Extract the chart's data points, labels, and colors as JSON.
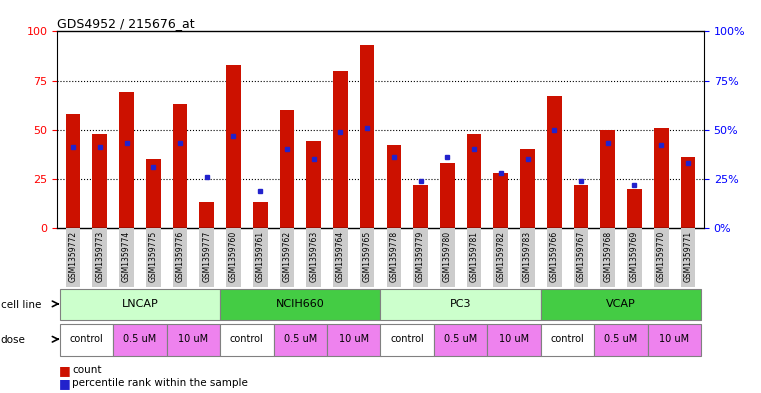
{
  "title": "GDS4952 / 215676_at",
  "samples": [
    "GSM1359772",
    "GSM1359773",
    "GSM1359774",
    "GSM1359775",
    "GSM1359776",
    "GSM1359777",
    "GSM1359760",
    "GSM1359761",
    "GSM1359762",
    "GSM1359763",
    "GSM1359764",
    "GSM1359765",
    "GSM1359778",
    "GSM1359779",
    "GSM1359780",
    "GSM1359781",
    "GSM1359782",
    "GSM1359783",
    "GSM1359766",
    "GSM1359767",
    "GSM1359768",
    "GSM1359769",
    "GSM1359770",
    "GSM1359771"
  ],
  "red_values": [
    58,
    48,
    69,
    35,
    63,
    13,
    83,
    13,
    60,
    44,
    80,
    93,
    42,
    22,
    33,
    48,
    28,
    40,
    67,
    22,
    50,
    20,
    51,
    36
  ],
  "blue_values": [
    41,
    41,
    43,
    31,
    43,
    26,
    47,
    19,
    40,
    35,
    49,
    51,
    36,
    24,
    36,
    40,
    28,
    35,
    50,
    24,
    43,
    22,
    42,
    33
  ],
  "cell_lines": [
    "LNCAP",
    "NCIH660",
    "PC3",
    "VCAP"
  ],
  "cell_line_spans": [
    [
      0,
      6
    ],
    [
      6,
      12
    ],
    [
      12,
      18
    ],
    [
      18,
      24
    ]
  ],
  "cell_line_color_light": "#ccffcc",
  "cell_line_color_dark": "#44cc44",
  "dose_groups": [
    [
      0,
      2,
      "control",
      "#ffffff"
    ],
    [
      2,
      4,
      "0.5 uM",
      "#ee82ee"
    ],
    [
      4,
      6,
      "10 uM",
      "#ee82ee"
    ],
    [
      6,
      8,
      "control",
      "#ffffff"
    ],
    [
      8,
      10,
      "0.5 uM",
      "#ee82ee"
    ],
    [
      10,
      12,
      "10 uM",
      "#ee82ee"
    ],
    [
      12,
      14,
      "control",
      "#ffffff"
    ],
    [
      14,
      16,
      "0.5 uM",
      "#ee82ee"
    ],
    [
      16,
      18,
      "10 uM",
      "#ee82ee"
    ],
    [
      18,
      20,
      "control",
      "#ffffff"
    ],
    [
      20,
      22,
      "0.5 uM",
      "#ee82ee"
    ],
    [
      22,
      24,
      "10 uM",
      "#ee82ee"
    ]
  ],
  "red_color": "#cc1100",
  "blue_color": "#2222cc",
  "tick_bg_color": "#cccccc",
  "ylim": [
    0,
    100
  ],
  "yticks": [
    0,
    25,
    50,
    75,
    100
  ],
  "grid_lines": [
    25,
    50,
    75
  ],
  "bar_width": 0.55
}
